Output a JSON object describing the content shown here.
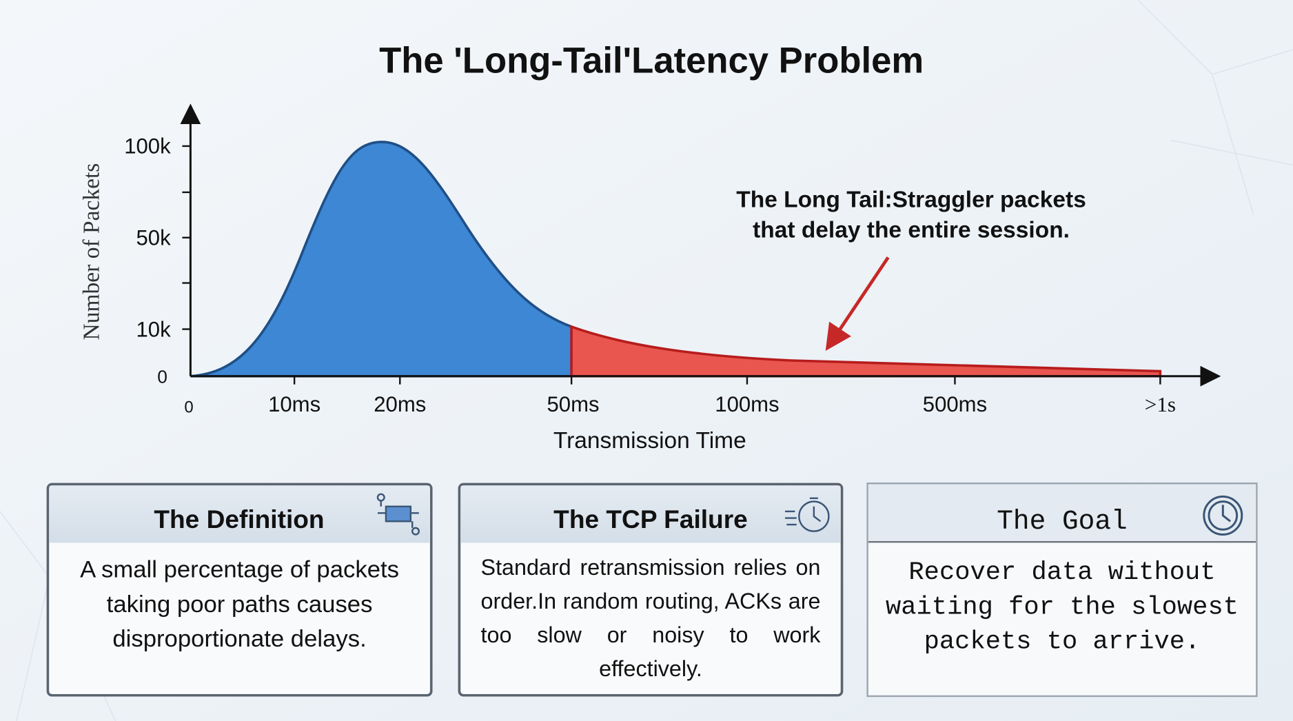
{
  "header": {
    "title": "The 'Long-Tail'Latency Problem"
  },
  "chart": {
    "y_axis_label": "Number of Packets",
    "x_axis_label": "Transmission Time",
    "y_tick_labels": [
      "100k",
      "50k",
      "10k",
      "0"
    ],
    "x_tick_labels": [
      "0",
      "10ms",
      "20ms",
      "50ms",
      "100ms",
      "500ms",
      ">1s"
    ],
    "annotation": [
      "The Long Tail:Straggler packets",
      "that delay the entire session."
    ]
  },
  "cards": [
    {
      "title": "The Definition",
      "body": "A small percentage of packets taking poor paths causes disproportionate delays."
    },
    {
      "title": "The TCP Failure",
      "body": "Standard retransmission relies on order.In random routing, ACKs are too slow or noisy to work effectively."
    },
    {
      "title": "The Goal",
      "body": "Recover data without waiting for the slowest packets to arrive."
    }
  ]
}
